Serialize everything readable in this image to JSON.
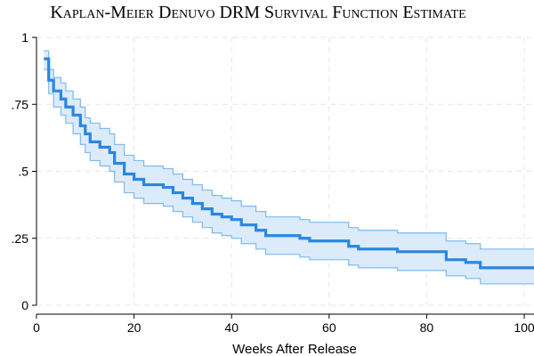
{
  "chart_data": {
    "type": "line",
    "title": "Kaplan-Meier Denuvo DRM Survival Function Estimate",
    "xlabel": "Weeks After Release",
    "ylabel": "",
    "xlim": [
      0,
      102
    ],
    "ylim": [
      0,
      1
    ],
    "x_ticks": [
      0,
      20,
      40,
      60,
      80,
      100
    ],
    "x_tick_labels": [
      "0",
      "20",
      "40",
      "60",
      "80",
      "100"
    ],
    "y_ticks": [
      0,
      0.25,
      0.5,
      0.75,
      1
    ],
    "y_tick_labels": [
      "0",
      ".25",
      ".5",
      ".75",
      "1"
    ],
    "grid": true,
    "legend": "none",
    "colors": {
      "line": "#2b86e0",
      "band_fill": "#dcebfa",
      "band_edge": "#7fb9ee"
    },
    "series": [
      {
        "style": "step",
        "points": [
          [
            1.5,
            0.92
          ],
          [
            2.5,
            0.84
          ],
          [
            3.5,
            0.8
          ],
          [
            5,
            0.77
          ],
          [
            6,
            0.74
          ],
          [
            7.5,
            0.71
          ],
          [
            9,
            0.67
          ],
          [
            10,
            0.64
          ],
          [
            11,
            0.61
          ],
          [
            13,
            0.59
          ],
          [
            15,
            0.57
          ],
          [
            16,
            0.53
          ],
          [
            18,
            0.49
          ],
          [
            20,
            0.47
          ],
          [
            22,
            0.45
          ],
          [
            26,
            0.44
          ],
          [
            28,
            0.42
          ],
          [
            30,
            0.4
          ],
          [
            32,
            0.38
          ],
          [
            34,
            0.36
          ],
          [
            36,
            0.34
          ],
          [
            38,
            0.33
          ],
          [
            40,
            0.32
          ],
          [
            42,
            0.3
          ],
          [
            45,
            0.28
          ],
          [
            47,
            0.26
          ],
          [
            54,
            0.25
          ],
          [
            56,
            0.24
          ],
          [
            64,
            0.22
          ],
          [
            66,
            0.21
          ],
          [
            74,
            0.2
          ],
          [
            84,
            0.17
          ],
          [
            88,
            0.16
          ],
          [
            91,
            0.14
          ],
          [
            102,
            0.14
          ]
        ]
      }
    ],
    "confidence_band": {
      "lower": [
        [
          1.5,
          0.88
        ],
        [
          2.5,
          0.79
        ],
        [
          3.5,
          0.74
        ],
        [
          5,
          0.71
        ],
        [
          6,
          0.68
        ],
        [
          7.5,
          0.64
        ],
        [
          9,
          0.6
        ],
        [
          10,
          0.57
        ],
        [
          11,
          0.54
        ],
        [
          13,
          0.52
        ],
        [
          15,
          0.5
        ],
        [
          16,
          0.46
        ],
        [
          18,
          0.42
        ],
        [
          20,
          0.4
        ],
        [
          22,
          0.38
        ],
        [
          26,
          0.37
        ],
        [
          28,
          0.35
        ],
        [
          30,
          0.33
        ],
        [
          32,
          0.31
        ],
        [
          34,
          0.29
        ],
        [
          36,
          0.27
        ],
        [
          38,
          0.26
        ],
        [
          40,
          0.25
        ],
        [
          42,
          0.23
        ],
        [
          45,
          0.21
        ],
        [
          47,
          0.19
        ],
        [
          54,
          0.18
        ],
        [
          56,
          0.17
        ],
        [
          64,
          0.15
        ],
        [
          66,
          0.14
        ],
        [
          74,
          0.13
        ],
        [
          84,
          0.11
        ],
        [
          88,
          0.1
        ],
        [
          91,
          0.08
        ],
        [
          102,
          0.08
        ]
      ],
      "upper": [
        [
          1.5,
          0.95
        ],
        [
          2.5,
          0.88
        ],
        [
          3.5,
          0.85
        ],
        [
          5,
          0.83
        ],
        [
          6,
          0.8
        ],
        [
          7.5,
          0.77
        ],
        [
          9,
          0.74
        ],
        [
          10,
          0.7
        ],
        [
          11,
          0.68
        ],
        [
          13,
          0.66
        ],
        [
          15,
          0.64
        ],
        [
          16,
          0.6
        ],
        [
          18,
          0.56
        ],
        [
          20,
          0.54
        ],
        [
          22,
          0.52
        ],
        [
          26,
          0.51
        ],
        [
          28,
          0.49
        ],
        [
          30,
          0.47
        ],
        [
          32,
          0.45
        ],
        [
          34,
          0.43
        ],
        [
          36,
          0.41
        ],
        [
          38,
          0.4
        ],
        [
          40,
          0.39
        ],
        [
          42,
          0.37
        ],
        [
          45,
          0.35
        ],
        [
          47,
          0.33
        ],
        [
          54,
          0.32
        ],
        [
          56,
          0.31
        ],
        [
          64,
          0.29
        ],
        [
          66,
          0.28
        ],
        [
          74,
          0.27
        ],
        [
          84,
          0.24
        ],
        [
          88,
          0.23
        ],
        [
          91,
          0.21
        ],
        [
          102,
          0.21
        ]
      ]
    }
  }
}
